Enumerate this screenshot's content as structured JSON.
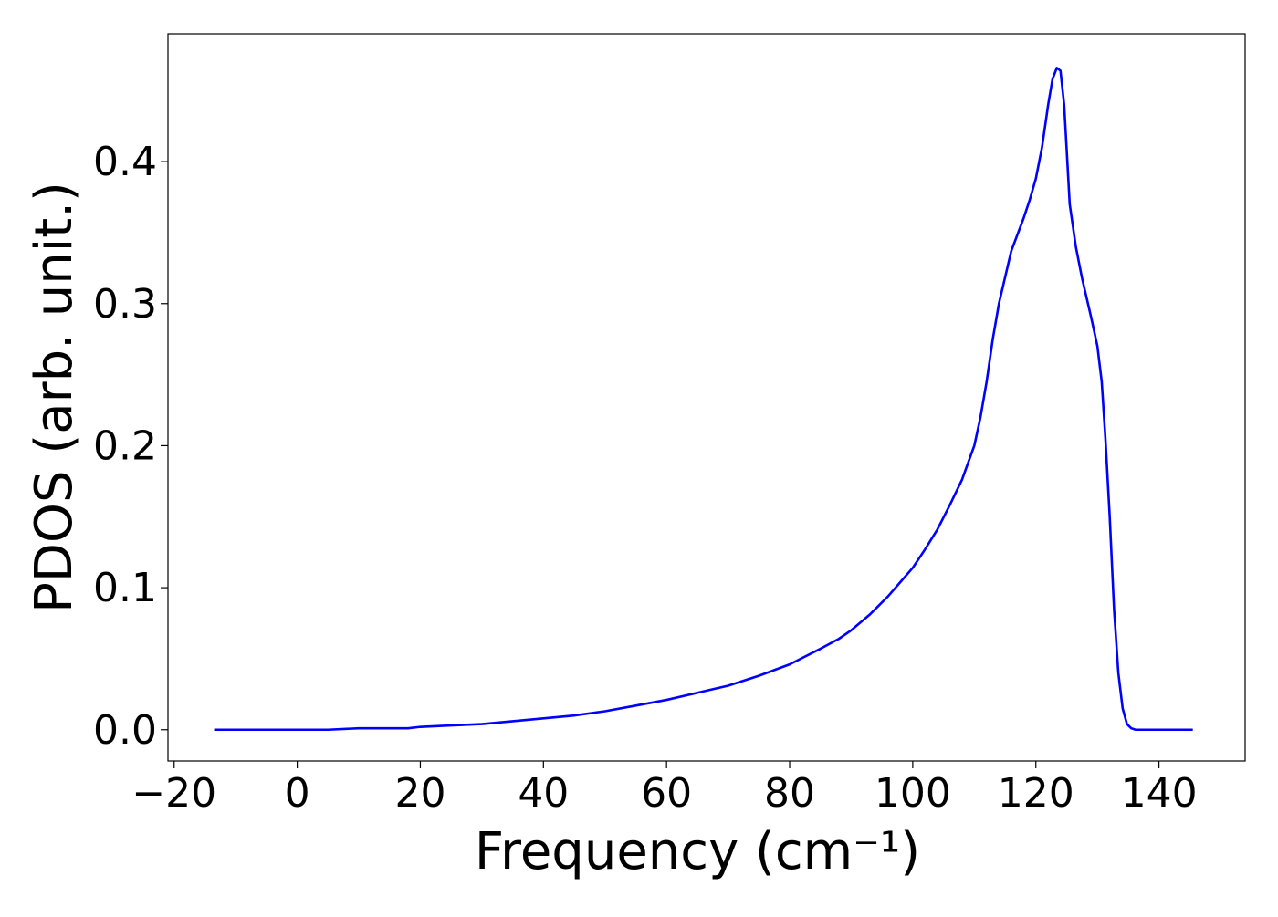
{
  "chart_data": {
    "type": "line",
    "title": "",
    "xlabel": "Frequency (cm⁻¹)",
    "ylabel": "PDOS (arb. unit.)",
    "xlim": [
      -21,
      154
    ],
    "ylim": [
      -0.022,
      0.49
    ],
    "xticks": [
      "−20",
      "0",
      "20",
      "40",
      "60",
      "80",
      "100",
      "120",
      "140"
    ],
    "xtick_values": [
      -20,
      0,
      20,
      40,
      60,
      80,
      100,
      120,
      140
    ],
    "yticks": [
      "0.0",
      "0.1",
      "0.2",
      "0.3",
      "0.4"
    ],
    "ytick_values": [
      0.0,
      0.1,
      0.2,
      0.3,
      0.4
    ],
    "grid": false,
    "series": [
      {
        "color": "#0000ff",
        "x": [
          -13.5,
          0,
          5,
          10,
          15,
          18,
          20,
          25,
          30,
          35,
          40,
          45,
          50,
          55,
          60,
          65,
          70,
          75,
          80,
          85,
          88,
          90,
          93,
          96,
          98,
          100,
          102,
          104,
          106,
          108,
          109,
          110,
          111,
          112,
          113,
          114,
          116,
          118,
          119,
          120,
          121,
          122,
          122.7,
          123.4,
          124,
          124.6,
          125.5,
          126.5,
          127.5,
          129,
          130,
          130.7,
          131.3,
          132,
          132.7,
          133.4,
          134.1,
          134.8,
          135.5,
          136.2,
          137,
          140,
          145.5
        ],
        "y": [
          0.0,
          0.0,
          0.0,
          0.001,
          0.001,
          0.001,
          0.002,
          0.003,
          0.004,
          0.006,
          0.008,
          0.01,
          0.013,
          0.017,
          0.021,
          0.026,
          0.031,
          0.038,
          0.046,
          0.057,
          0.064,
          0.07,
          0.081,
          0.094,
          0.104,
          0.114,
          0.127,
          0.141,
          0.158,
          0.176,
          0.188,
          0.2,
          0.22,
          0.245,
          0.275,
          0.3,
          0.337,
          0.36,
          0.373,
          0.388,
          0.41,
          0.44,
          0.458,
          0.466,
          0.464,
          0.44,
          0.37,
          0.34,
          0.318,
          0.29,
          0.27,
          0.245,
          0.205,
          0.15,
          0.085,
          0.04,
          0.015,
          0.004,
          0.001,
          0.0,
          0.0,
          0.0,
          0.0
        ]
      }
    ]
  }
}
